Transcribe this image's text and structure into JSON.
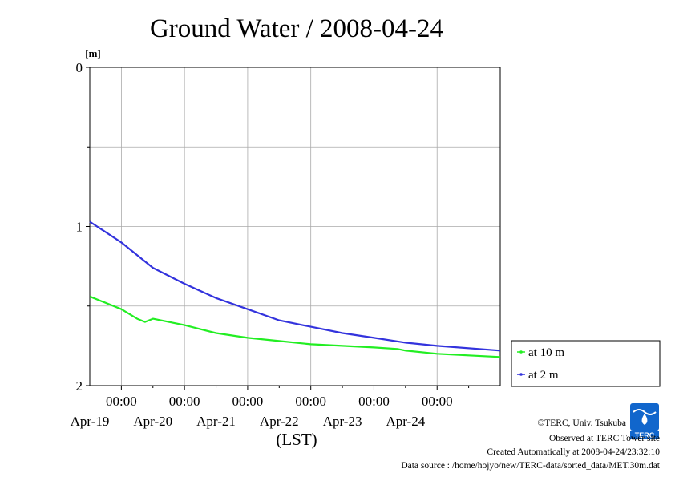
{
  "chart_data": {
    "type": "line",
    "title": "Ground Water / 2008-04-24",
    "xlabel": "(LST)",
    "ylabel": "[m]",
    "y_inverted": true,
    "ylim": [
      0,
      2
    ],
    "yticks": [
      "0",
      "1",
      "2"
    ],
    "xlim_days": [
      "Apr-18 12:00",
      "Apr-24 24:00"
    ],
    "x_tick_time_label": "00:00",
    "x_tick_dates": [
      "Apr-19",
      "Apr-20",
      "Apr-21",
      "Apr-22",
      "Apr-23",
      "Apr-24"
    ],
    "grid": true,
    "legend_position": "right",
    "series": [
      {
        "name": "at 10 m",
        "color": "#22ee22",
        "x": [
          "Apr-18 12:00",
          "Apr-19 00:00",
          "Apr-19 06:00",
          "Apr-19 09:00",
          "Apr-19 12:00",
          "Apr-20 00:00",
          "Apr-20 12:00",
          "Apr-21 00:00",
          "Apr-21 12:00",
          "Apr-22 00:00",
          "Apr-22 12:00",
          "Apr-23 00:00",
          "Apr-23 09:00",
          "Apr-23 12:00",
          "Apr-24 00:00",
          "Apr-24 24:00"
        ],
        "values": [
          1.44,
          1.52,
          1.58,
          1.6,
          1.58,
          1.62,
          1.67,
          1.7,
          1.72,
          1.74,
          1.75,
          1.76,
          1.77,
          1.78,
          1.8,
          1.82
        ]
      },
      {
        "name": "at 2 m",
        "color": "#3333dd",
        "x": [
          "Apr-18 12:00",
          "Apr-19 00:00",
          "Apr-19 12:00",
          "Apr-20 00:00",
          "Apr-20 12:00",
          "Apr-21 00:00",
          "Apr-21 12:00",
          "Apr-22 00:00",
          "Apr-22 12:00",
          "Apr-23 00:00",
          "Apr-23 12:00",
          "Apr-24 00:00",
          "Apr-24 24:00"
        ],
        "values": [
          0.97,
          1.1,
          1.26,
          1.36,
          1.45,
          1.52,
          1.59,
          1.63,
          1.67,
          1.7,
          1.73,
          1.75,
          1.78
        ]
      }
    ]
  },
  "footer": {
    "copyright": "©TERC, Univ. Tsukuba",
    "observed": "Observed at TERC Tower site",
    "created": "Created Automatically at 2008-04-24/23:32:10",
    "source": "Data source : /home/hojyo/new/TERC-data/sorted_data/MET.30m.dat"
  },
  "logo": {
    "text": "TERC",
    "icon": "terc-logo-icon",
    "colors": [
      "#1166cc",
      "#ffffff"
    ]
  }
}
